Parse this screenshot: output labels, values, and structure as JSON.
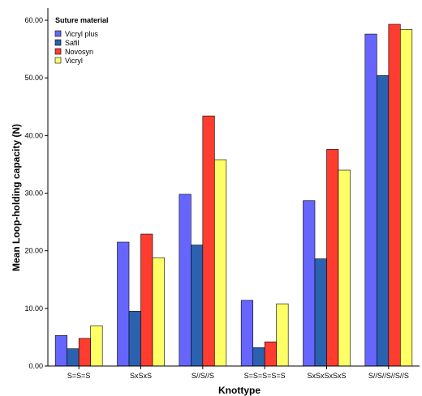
{
  "chart_data": {
    "type": "bar",
    "xlabel": "Knottype",
    "ylabel": "Mean Loop-holding capacity (N)",
    "ylim": [
      0,
      60
    ],
    "yticks": [
      "0.00",
      "10.00",
      "20.00",
      "30.00",
      "40.00",
      "50.00",
      "60.00"
    ],
    "categories": [
      "S=S=S",
      "SxSxS",
      "S//S//S",
      "S=S=S=S=S",
      "SxSxSxSxS",
      "S//S//S//S//S"
    ],
    "legend_title": "Suture material",
    "legend_position": "top-left",
    "grid": false,
    "series": [
      {
        "name": "Vicryl plus",
        "color": "#6666ff",
        "values": [
          5.3,
          21.5,
          29.8,
          11.4,
          28.7,
          57.6
        ]
      },
      {
        "name": "Safil",
        "color": "#2a62b0",
        "values": [
          3.0,
          9.5,
          21.0,
          3.2,
          18.6,
          50.4
        ]
      },
      {
        "name": "Novosyn",
        "color": "#ff3c30",
        "values": [
          4.8,
          22.9,
          43.4,
          4.2,
          37.6,
          59.3
        ]
      },
      {
        "name": "Vicryl",
        "color": "#ffff66",
        "values": [
          7.0,
          18.8,
          35.8,
          10.8,
          34.0,
          58.4
        ]
      }
    ]
  }
}
